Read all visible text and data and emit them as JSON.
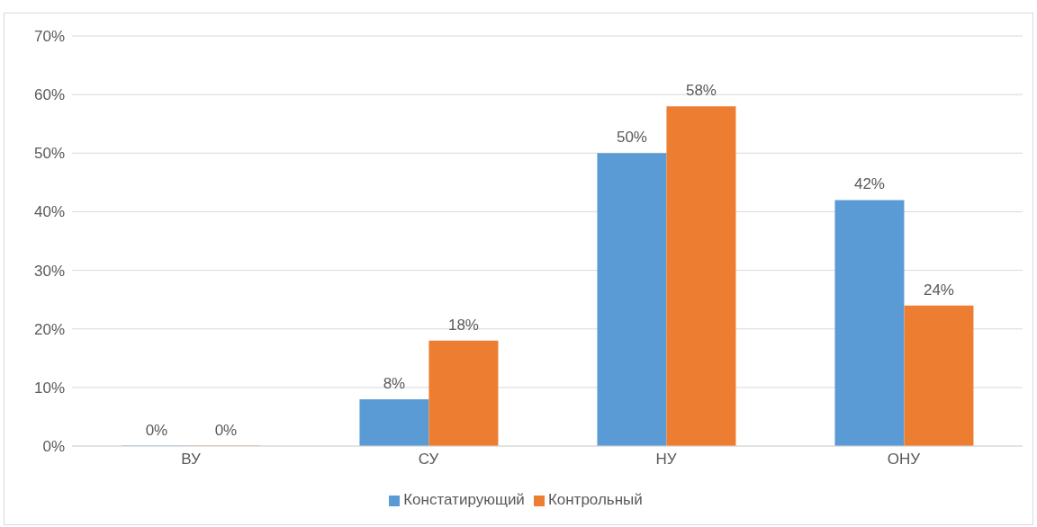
{
  "chart_data": {
    "type": "bar",
    "categories": [
      "ВУ",
      "СУ",
      "НУ",
      "ОНУ"
    ],
    "series": [
      {
        "name": "Констатирующий",
        "color": "#5b9bd5",
        "values": [
          0,
          8,
          50,
          42
        ],
        "value_labels": [
          "0%",
          "8%",
          "50%",
          "42%"
        ]
      },
      {
        "name": "Контрольный",
        "color": "#ed7d31",
        "values": [
          0,
          18,
          58,
          24
        ],
        "value_labels": [
          "0%",
          "18%",
          "58%",
          "24%"
        ]
      }
    ],
    "ylim": [
      0,
      70
    ],
    "yticks": [
      {
        "value": 0,
        "label": "0%"
      },
      {
        "value": 10,
        "label": "10%"
      },
      {
        "value": 20,
        "label": "20%"
      },
      {
        "value": 30,
        "label": "30%"
      },
      {
        "value": 40,
        "label": "40%"
      },
      {
        "value": 50,
        "label": "50%"
      },
      {
        "value": 60,
        "label": "60%"
      },
      {
        "value": 70,
        "label": "70%"
      }
    ],
    "grid": "y",
    "legend": "bottom"
  }
}
